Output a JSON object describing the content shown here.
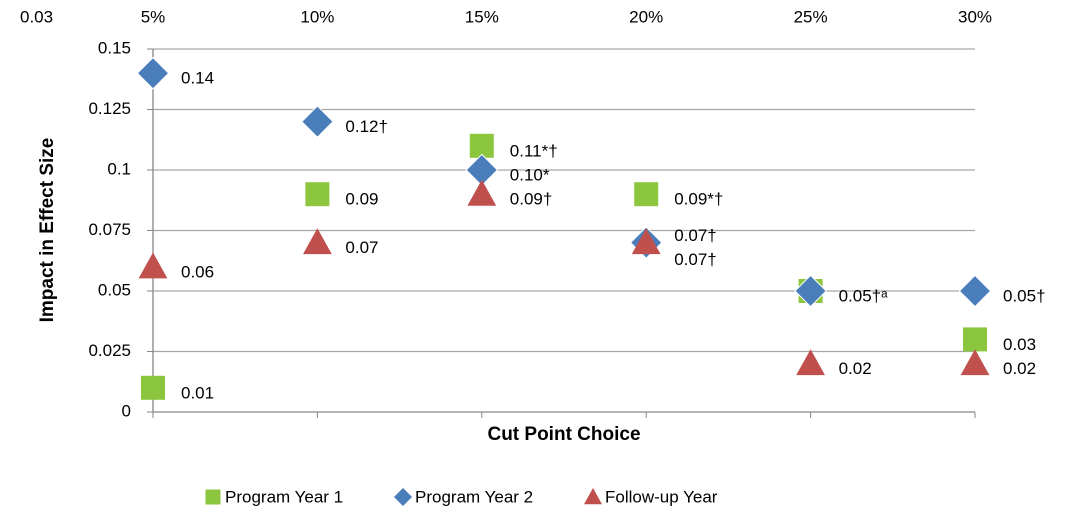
{
  "chart_data": {
    "type": "scatter",
    "corner_label": "0.03",
    "categories": [
      "5%",
      "10%",
      "15%",
      "20%",
      "25%",
      "30%"
    ],
    "xlabel": "Cut Point Choice",
    "ylabel": "Impact in Effect Size",
    "ylim": [
      0,
      0.15
    ],
    "yticks": [
      0,
      0.025,
      0.05,
      0.075,
      0.1,
      0.125,
      0.15
    ],
    "grid": true,
    "legend": "bottom",
    "series": [
      {
        "name": "Program Year 1",
        "color": "#8cc63f",
        "marker": "square",
        "values": [
          0.01,
          0.09,
          0.11,
          0.09,
          0.05,
          0.03
        ],
        "value_labels": [
          "0.01",
          "0.09",
          "0.11*†",
          "0.09*†",
          null,
          "0.03"
        ]
      },
      {
        "name": "Program Year 2",
        "color": "#4a7ebb",
        "marker": "diamond",
        "values": [
          0.14,
          0.12,
          0.1,
          0.07,
          0.05,
          0.05
        ],
        "value_labels": [
          "0.14",
          "0.12†",
          "0.10*",
          "0.07†",
          "0.05†ᵃ",
          "0.05†"
        ]
      },
      {
        "name": "Follow-up Year",
        "color": "#c0504d",
        "marker": "triangle",
        "values": [
          0.06,
          0.07,
          0.09,
          0.07,
          0.02,
          0.02
        ],
        "value_labels": [
          "0.06",
          "0.07",
          "0.09†",
          "0.07†",
          "0.02",
          "0.02"
        ]
      }
    ]
  }
}
